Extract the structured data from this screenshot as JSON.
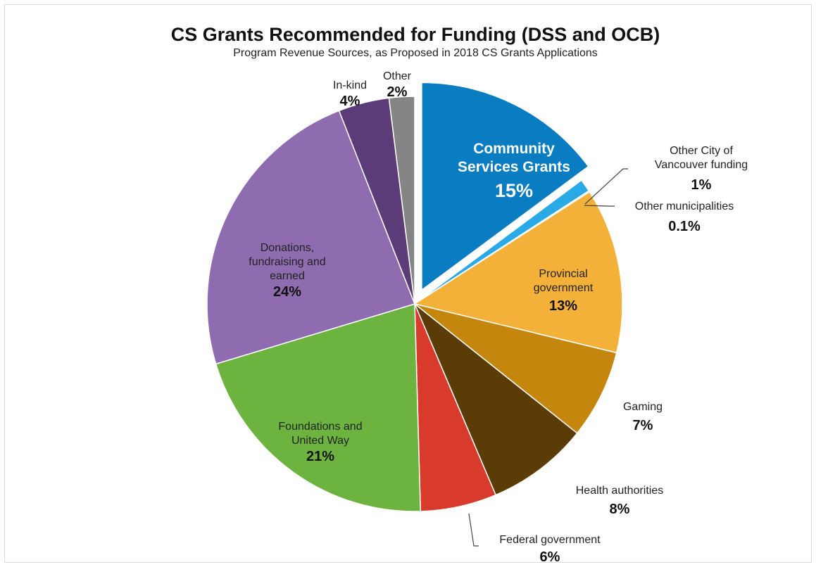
{
  "chart_data": {
    "type": "pie",
    "title": "CS Grants Recommended for Funding (DSS and OCB)",
    "subtitle": "Program Revenue Sources, as Proposed in 2018 CS Grants Applications",
    "slices": [
      {
        "label_lines": [
          "Community",
          "Services Grants"
        ],
        "value_label": "15%",
        "value": 15,
        "color": "#0a7dc2",
        "exploded": true
      },
      {
        "label_lines": [
          "Other City of",
          "Vancouver funding"
        ],
        "value_label": "1%",
        "value": 1,
        "color": "#29a9e6"
      },
      {
        "label_lines": [
          "Other municipalities"
        ],
        "value_label": "0.1%",
        "value": 0.1,
        "color": "#7fcdf0"
      },
      {
        "label_lines": [
          "Provincial",
          "government"
        ],
        "value_label": "13%",
        "value": 13,
        "color": "#f4b13a"
      },
      {
        "label_lines": [
          "Gaming"
        ],
        "value_label": "7%",
        "value": 7,
        "color": "#c5860d"
      },
      {
        "label_lines": [
          "Health authorities"
        ],
        "value_label": "8%",
        "value": 8,
        "color": "#5c3c06"
      },
      {
        "label_lines": [
          "Federal government"
        ],
        "value_label": "6%",
        "value": 6,
        "color": "#d83a2b"
      },
      {
        "label_lines": [
          "Foundations and",
          "United Way"
        ],
        "value_label": "21%",
        "value": 21,
        "color": "#6db33f"
      },
      {
        "label_lines": [
          "Donations,",
          "fundraising and",
          "earned"
        ],
        "value_label": "24%",
        "value": 24,
        "color": "#8f6cb0"
      },
      {
        "label_lines": [
          "In-kind"
        ],
        "value_label": "4%",
        "value": 4,
        "color": "#5b3b78"
      },
      {
        "label_lines": [
          "Other"
        ],
        "value_label": "2%",
        "value": 2,
        "color": "#858585"
      }
    ]
  }
}
